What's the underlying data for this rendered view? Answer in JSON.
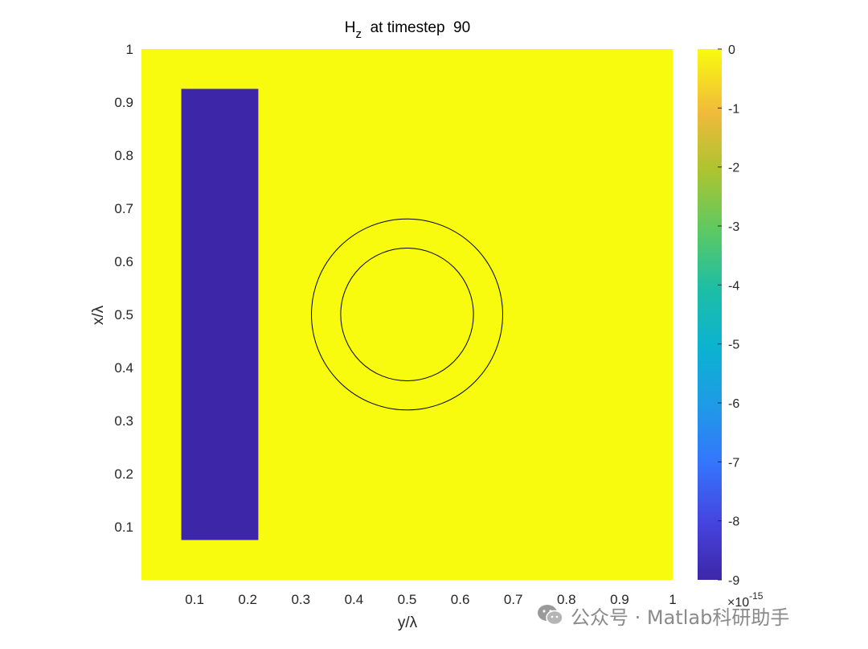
{
  "chart_data": {
    "type": "heatmap",
    "title_main": "H",
    "title_sub": "z",
    "title_rest": "  at timestep  90",
    "xlabel": "y/λ",
    "ylabel": "x/λ",
    "xlim": [
      0,
      1
    ],
    "ylim": [
      0,
      1
    ],
    "xticks": [
      "0.1",
      "0.2",
      "0.3",
      "0.4",
      "0.5",
      "0.6",
      "0.7",
      "0.8",
      "0.9",
      "1"
    ],
    "xtick_values": [
      0.1,
      0.2,
      0.3,
      0.4,
      0.5,
      0.6,
      0.7,
      0.8,
      0.9,
      1.0
    ],
    "yticks": [
      "0.1",
      "0.2",
      "0.3",
      "0.4",
      "0.5",
      "0.6",
      "0.7",
      "0.8",
      "0.9",
      "1"
    ],
    "ytick_values": [
      0.1,
      0.2,
      0.3,
      0.4,
      0.5,
      0.6,
      0.7,
      0.8,
      0.9,
      1.0
    ],
    "background_value": 0,
    "source_region": {
      "y_range": [
        0.075,
        0.22
      ],
      "x_range": [
        0.075,
        0.925
      ],
      "value": -9e-15
    },
    "circles": [
      {
        "center_y": 0.5,
        "center_x": 0.5,
        "radius": 0.18
      },
      {
        "center_y": 0.5,
        "center_x": 0.5,
        "radius": 0.125
      }
    ],
    "colorbar": {
      "colormap": "parula",
      "range": [
        -9,
        0
      ],
      "ticks": [
        "0",
        "-1",
        "-2",
        "-3",
        "-4",
        "-5",
        "-6",
        "-7",
        "-8",
        "-9"
      ],
      "tick_values": [
        0,
        -1,
        -2,
        -3,
        -4,
        -5,
        -6,
        -7,
        -8,
        -9
      ],
      "multiplier_base": "×10",
      "multiplier_exp": "-15"
    },
    "colors": {
      "background": "#f9fb0e",
      "source": "#3e26a8",
      "circle": "#000000"
    }
  },
  "watermark": {
    "icon": "wechat-icon",
    "text": "公众号 · Matlab科研助手"
  }
}
